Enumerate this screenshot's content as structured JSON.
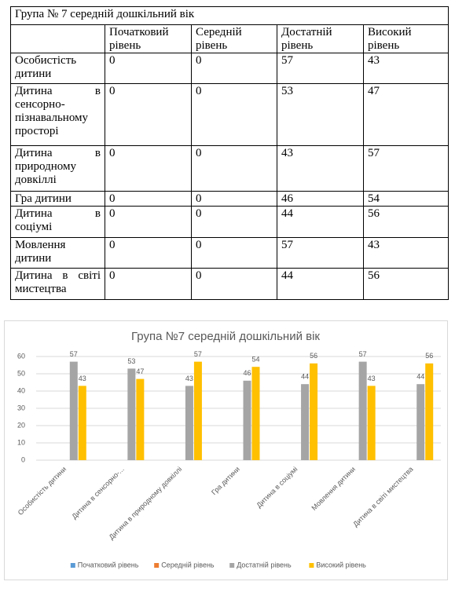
{
  "table": {
    "title": "Група №  7 середній дошкільний вік",
    "header": [
      "Початковий рівень",
      "Середній рівень",
      "Достатній рівень",
      "Високий рівень"
    ],
    "rows": [
      [
        "Особистість дитини",
        0,
        0,
        57,
        43
      ],
      [
        "Дитина в сенсорно-пізнавальному просторі",
        0,
        0,
        53,
        47
      ],
      [
        "Дитина в природному довкіллі",
        0,
        0,
        43,
        57
      ],
      [
        "Гра дитини",
        0,
        0,
        46,
        54
      ],
      [
        "Дитина в соціумі",
        0,
        0,
        44,
        56
      ],
      [
        "Мовлення дитини",
        0,
        0,
        57,
        43
      ],
      [
        "Дитина в світі мистецтва",
        0,
        0,
        44,
        56
      ]
    ]
  },
  "chart_data": {
    "type": "bar",
    "title": "Група №7 середній дошкільний вік",
    "categories": [
      "Особистість дитини",
      "Дитина в сенсорно-...",
      "Дитина в природному довкіллі",
      "Гра дитини",
      "Дитина в соціумі",
      "Мовлення дитини",
      "Дитина в світі мистецтва"
    ],
    "series": [
      {
        "name": "Початковий рівень",
        "color": "#5b9bd5",
        "values": [
          0,
          0,
          0,
          0,
          0,
          0,
          0
        ],
        "labels": false
      },
      {
        "name": "Середній рівень",
        "color": "#ed7d31",
        "values": [
          0,
          0,
          0,
          0,
          0,
          0,
          0
        ],
        "labels": false
      },
      {
        "name": "Достатній рівень",
        "color": "#a5a5a5",
        "values": [
          57,
          53,
          43,
          46,
          44,
          57,
          44
        ],
        "labels": true
      },
      {
        "name": "Високий рівень",
        "color": "#ffc000",
        "values": [
          43,
          47,
          57,
          54,
          56,
          43,
          56
        ],
        "labels": true
      }
    ],
    "ylim": [
      0,
      60
    ],
    "yticks": [
      0,
      10,
      20,
      30,
      40,
      50,
      60
    ],
    "grid": true,
    "legend": "bottom"
  }
}
